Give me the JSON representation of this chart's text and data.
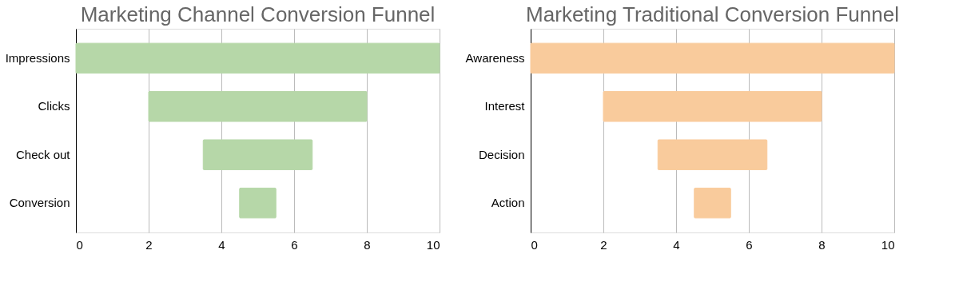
{
  "chart_data": [
    {
      "type": "bar",
      "orientation": "horizontal",
      "title": "Marketing Channel Conversion Funnel",
      "categories": [
        "Impressions",
        "Clicks",
        "Check out",
        "Conversion"
      ],
      "base": [
        0,
        2,
        3.5,
        4.5
      ],
      "values": [
        10,
        6,
        3,
        1
      ],
      "color": "#b6d7a8",
      "xlim": [
        0,
        10
      ],
      "xticks": [
        0,
        2,
        4,
        6,
        8,
        10
      ],
      "grid": "x"
    },
    {
      "type": "bar",
      "orientation": "horizontal",
      "title": "Marketing Traditional Conversion Funnel",
      "categories": [
        "Awareness",
        "Interest",
        "Decision",
        "Action"
      ],
      "base": [
        0,
        2,
        3.5,
        4.5
      ],
      "values": [
        10,
        6,
        3,
        1
      ],
      "color": "#f9cb9c",
      "xlim": [
        0,
        10
      ],
      "xticks": [
        0,
        2,
        4,
        6,
        8,
        10
      ],
      "grid": "x"
    }
  ]
}
